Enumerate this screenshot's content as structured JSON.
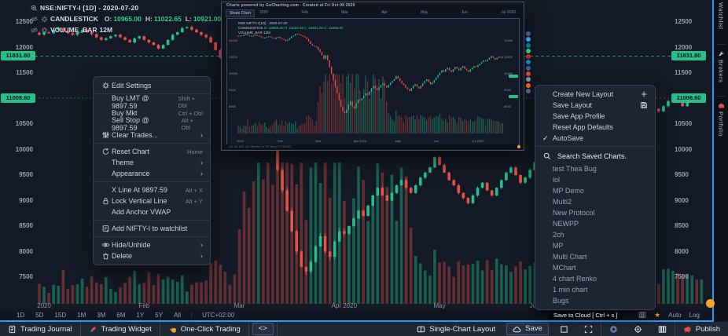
{
  "colors": {
    "up": "#23c08d",
    "down": "#e8524a",
    "accent_blue": "#2f9bf4",
    "badge_green": "#25c189",
    "orange": "#f7a325"
  },
  "header": {
    "symbol_line": "NSE:NIFTY-I [1D] - 2020-07-20",
    "series": {
      "label": "CANDLESTICK",
      "o_label": "O:",
      "o": "10965.00",
      "h_label": "H:",
      "h": "11022.65",
      "l_label": "L:",
      "l": "10921.00",
      "c_label": "C:",
      "c": "11008.60"
    },
    "volume_label": "VOLUME_BAR",
    "volume_value": "12M"
  },
  "context_menu": {
    "groups": [
      [
        {
          "icon": "gear",
          "label": "Edit Settings"
        }
      ],
      [
        {
          "label": "Buy LMT @ 9897.59",
          "shortcut": "Shift + Dbl"
        },
        {
          "label": "Buy Mkt",
          "shortcut": "Ctrl + Dbl"
        },
        {
          "label": "Sell Stop @ 9897.59",
          "shortcut": "Alt + Dbl"
        },
        {
          "icon": "sliders",
          "label": "Clear Trades...",
          "arrow": true
        }
      ],
      [
        {
          "icon": "refresh",
          "label": "Reset Chart",
          "shortcut": "Home"
        },
        {
          "label": "Theme",
          "arrow": true
        },
        {
          "label": "Appearance",
          "arrow": true
        }
      ],
      [
        {
          "label": "X Line At 9897.59",
          "shortcut": "Alt + X"
        },
        {
          "icon": "lock",
          "label": "Lock Vertical Line",
          "shortcut": "Alt + Y"
        },
        {
          "label": "Add Anchor VWAP"
        }
      ],
      [
        {
          "icon": "addlist",
          "label": "Add NIFTY-I to watchlist"
        }
      ],
      [
        {
          "icon": "eye",
          "label": "Hide/Unhide",
          "arrow": true
        },
        {
          "icon": "trash",
          "label": "Delete",
          "arrow": true
        }
      ]
    ]
  },
  "layout_menu": {
    "items": [
      {
        "label": "Create New Layout",
        "trail": "plus"
      },
      {
        "label": "Save Layout",
        "trail": "floppy"
      },
      {
        "label": "Save App Profile"
      },
      {
        "label": "Reset App Defaults"
      },
      {
        "label": "AutoSave",
        "checked": true
      }
    ],
    "search_placeholder": "Search Saved Charts.",
    "saved_charts": [
      "test Thea Bug",
      "lol",
      "MP Demo",
      "Multi2",
      "New Protocol",
      "NEWPP",
      "2ch",
      "MP",
      "Multi Chart",
      "MChart",
      "4 chart Renko",
      "1 min chart",
      "Bugs"
    ]
  },
  "popup": {
    "title": "Charts powered by GoCharting.com - Created at Fri Oct 09 2020",
    "tab": "Share Chart",
    "range_labels": [
      "2020",
      "Feb",
      "Mar",
      "Apr",
      "May",
      "Jun",
      "Jul 2020"
    ],
    "legend1": "NSE:NIFTY-I [1D] - 2020-07-20",
    "legend2_label": "CANDLESTICK",
    "legend2_vals": "O: 10965.00 H: 11022.65 L: 10921.00 C: 11008.60",
    "legend3": "VOLUME_BAR 12M",
    "footer_text": "1D 5D 15D 1M 3M 6M 1Y 5Y All   UTC+02:00",
    "mini_ticks": [
      "12000",
      "11000",
      "10000",
      "9000",
      "8000"
    ]
  },
  "social_icons": [
    {
      "name": "facebook",
      "color": "#3b5998"
    },
    {
      "name": "twitter",
      "color": "#1da1f2"
    },
    {
      "name": "linkedin",
      "color": "#0077b5"
    },
    {
      "name": "whatsapp",
      "color": "#25d366"
    },
    {
      "name": "pinterest",
      "color": "#cb2027"
    },
    {
      "name": "telegram",
      "color": "#0088cc"
    },
    {
      "name": "facebook-messenger",
      "color": "#3b579d"
    },
    {
      "name": "reddit",
      "color": "#d64937"
    },
    {
      "name": "email",
      "color": "#7f8fa4"
    },
    {
      "name": "hackernews",
      "color": "#ff6600"
    },
    {
      "name": "tumblr",
      "color": "#4a6d8c"
    }
  ],
  "axes": {
    "price_ticks": [
      12500,
      12000,
      11500,
      11000,
      10500,
      10000,
      9500,
      9000,
      8500,
      8000,
      7500
    ],
    "x_labels": [
      {
        "label": "2020",
        "i": 1
      },
      {
        "label": "Feb",
        "i": 22
      },
      {
        "label": "Mar",
        "i": 42
      },
      {
        "label": "Apr 2020",
        "i": 64
      },
      {
        "label": "May",
        "i": 84
      },
      {
        "label": "Jun",
        "i": 104
      },
      {
        "label": "Jul 2020",
        "i": 126
      }
    ],
    "badges": [
      {
        "text": "11831.80",
        "price": 11831.8
      },
      {
        "text": "11008.60",
        "price": 11008.6
      }
    ]
  },
  "side_tabs": [
    {
      "label": "Watchlist",
      "icon": "star",
      "y": 0,
      "h": 54
    },
    {
      "label": "Brokers",
      "icon": "wrench",
      "y": 60,
      "h": 60
    },
    {
      "label": "Portfolio",
      "icon": "briefcase",
      "y": 126,
      "h": 64
    }
  ],
  "timeframe_bar": {
    "items": [
      "1D",
      "5D",
      "15D",
      "1M",
      "3M",
      "6M",
      "1Y",
      "5Y",
      "All"
    ],
    "timezone": "UTC+02:00",
    "right_labels": [
      "Auto",
      "Log"
    ]
  },
  "footer": {
    "left": [
      {
        "name": "trading-journal",
        "icon": "journal",
        "label": "Trading Journal"
      },
      {
        "name": "trading-widget",
        "icon": "rocket",
        "label": "Trading Widget"
      },
      {
        "name": "one-click-trading",
        "icon": "hand",
        "label": "One-Click Trading"
      },
      {
        "name": "code-widget",
        "icon": "code",
        "label": "<>",
        "boxed": true
      }
    ],
    "right": [
      {
        "name": "single-chart-layout",
        "icon": "layout",
        "label": "Single-Chart Layout"
      },
      {
        "name": "save",
        "icon": "cloud",
        "label": "Save",
        "boxed": true
      },
      {
        "name": "screenshot",
        "icon": "square"
      },
      {
        "name": "fullscreen",
        "icon": "expand"
      },
      {
        "sep": true
      },
      {
        "name": "camera",
        "icon": "camera"
      },
      {
        "name": "crosshair",
        "icon": "crosshair"
      },
      {
        "name": "grid-columns",
        "icon": "columns"
      },
      {
        "sep": true
      },
      {
        "name": "publish",
        "icon": "megaphone",
        "label": "Publish"
      }
    ]
  },
  "tooltip": "Save to Cloud [ Ctrl + s ]",
  "chart_data": {
    "type": "candlestick",
    "symbol": "NSE:NIFTY-I",
    "timeframe": "1D",
    "last_date": "2020-07-20",
    "ohlc_last": {
      "open": 10965.0,
      "high": 11022.65,
      "low": 10921.0,
      "close": 11008.6
    },
    "levels": [
      11831.8,
      11008.6
    ],
    "ylim": [
      7500,
      12500
    ],
    "closes": [
      12250,
      12300,
      12280,
      12350,
      12380,
      12320,
      12280,
      12250,
      12300,
      12340,
      12300,
      12260,
      12200,
      12150,
      12180,
      12220,
      12250,
      12200,
      12150,
      12100,
      12180,
      12220,
      12150,
      12100,
      12050,
      11980,
      12050,
      12150,
      12250,
      12300,
      12380,
      12400,
      12350,
      12300,
      12250,
      12200,
      12100,
      11950,
      11800,
      11700,
      11650,
      11600,
      11450,
      11300,
      11100,
      10900,
      11100,
      10800,
      10400,
      10000,
      9600,
      9200,
      8800,
      8400,
      8000,
      7700,
      7610,
      7800,
      8100,
      8300,
      8000,
      7900,
      8200,
      8400,
      8350,
      8500,
      8650,
      8800,
      8700,
      8900,
      9100,
      9250,
      9100,
      9000,
      9150,
      9300,
      9400,
      9250,
      9150,
      9300,
      9450,
      9550,
      9650,
      9850,
      9700,
      9550,
      9400,
      9300,
      9150,
      9050,
      8950,
      9100,
      9250,
      9350,
      9200,
      9100,
      9250,
      9400,
      9550,
      9650,
      9500,
      9350,
      9450,
      9600,
      9750,
      9900,
      10050,
      10200,
      10100,
      10250,
      10350,
      10200,
      10100,
      10250,
      10400,
      10300,
      10200,
      10350,
      10450,
      10300,
      10200,
      10100,
      10250,
      10350,
      10450,
      10400,
      10500,
      10600,
      10700,
      10800,
      10750,
      10850,
      10950,
      11050,
      10950,
      10850,
      10950,
      11022,
      10965,
      11008
    ]
  }
}
